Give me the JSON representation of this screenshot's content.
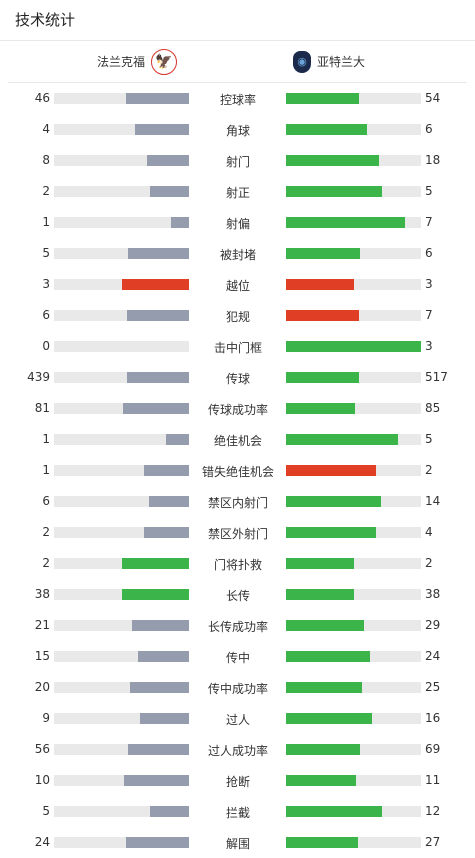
{
  "header": {
    "title": "技术统计"
  },
  "teams": {
    "home": {
      "name": "法兰克福",
      "logo_icon": "eintracht-frankfurt-logo-icon"
    },
    "away": {
      "name": "亚特兰大",
      "logo_icon": "atalanta-logo-icon"
    }
  },
  "colors": {
    "gray": "#949cae",
    "green": "#3bb54a",
    "red": "#e03e25",
    "track": "#e9e9e9"
  },
  "stats": [
    {
      "label": "控球率",
      "home": "46",
      "away": "54",
      "home_level": 0.47,
      "away_level": 0.54,
      "home_color": "gray",
      "away_color": "green"
    },
    {
      "label": "角球",
      "home": "4",
      "away": "6",
      "home_level": 0.4,
      "away_level": 0.6,
      "home_color": "gray",
      "away_color": "green"
    },
    {
      "label": "射门",
      "home": "8",
      "away": "18",
      "home_level": 0.31,
      "away_level": 0.69,
      "home_color": "gray",
      "away_color": "green"
    },
    {
      "label": "射正",
      "home": "2",
      "away": "5",
      "home_level": 0.29,
      "away_level": 0.71,
      "home_color": "gray",
      "away_color": "green"
    },
    {
      "label": "射偏",
      "home": "1",
      "away": "7",
      "home_level": 0.13,
      "away_level": 0.88,
      "home_color": "gray",
      "away_color": "green"
    },
    {
      "label": "被封堵",
      "home": "5",
      "away": "6",
      "home_level": 0.45,
      "away_level": 0.55,
      "home_color": "gray",
      "away_color": "green"
    },
    {
      "label": "越位",
      "home": "3",
      "away": "3",
      "home_level": 0.5,
      "away_level": 0.5,
      "home_color": "red",
      "away_color": "red"
    },
    {
      "label": "犯规",
      "home": "6",
      "away": "7",
      "home_level": 0.46,
      "away_level": 0.54,
      "home_color": "gray",
      "away_color": "red"
    },
    {
      "label": "击中门框",
      "home": "0",
      "away": "3",
      "home_level": 0.0,
      "away_level": 1.0,
      "home_color": "gray",
      "away_color": "green"
    },
    {
      "label": "传球",
      "home": "439",
      "away": "517",
      "home_level": 0.46,
      "away_level": 0.54,
      "home_color": "gray",
      "away_color": "green"
    },
    {
      "label": "传球成功率",
      "home": "81",
      "away": "85",
      "home_level": 0.49,
      "away_level": 0.51,
      "home_color": "gray",
      "away_color": "green"
    },
    {
      "label": "绝佳机会",
      "home": "1",
      "away": "5",
      "home_level": 0.17,
      "away_level": 0.83,
      "home_color": "gray",
      "away_color": "green"
    },
    {
      "label": "错失绝佳机会",
      "home": "1",
      "away": "2",
      "home_level": 0.33,
      "away_level": 0.67,
      "home_color": "gray",
      "away_color": "red"
    },
    {
      "label": "禁区内射门",
      "home": "6",
      "away": "14",
      "home_level": 0.3,
      "away_level": 0.7,
      "home_color": "gray",
      "away_color": "green"
    },
    {
      "label": "禁区外射门",
      "home": "2",
      "away": "4",
      "home_level": 0.33,
      "away_level": 0.67,
      "home_color": "gray",
      "away_color": "green"
    },
    {
      "label": "门将扑救",
      "home": "2",
      "away": "2",
      "home_level": 0.5,
      "away_level": 0.5,
      "home_color": "green",
      "away_color": "green"
    },
    {
      "label": "长传",
      "home": "38",
      "away": "38",
      "home_level": 0.5,
      "away_level": 0.5,
      "home_color": "green",
      "away_color": "green"
    },
    {
      "label": "长传成功率",
      "home": "21",
      "away": "29",
      "home_level": 0.42,
      "away_level": 0.58,
      "home_color": "gray",
      "away_color": "green"
    },
    {
      "label": "传中",
      "home": "15",
      "away": "24",
      "home_level": 0.38,
      "away_level": 0.62,
      "home_color": "gray",
      "away_color": "green"
    },
    {
      "label": "传中成功率",
      "home": "20",
      "away": "25",
      "home_level": 0.44,
      "away_level": 0.56,
      "home_color": "gray",
      "away_color": "green"
    },
    {
      "label": "过人",
      "home": "9",
      "away": "16",
      "home_level": 0.36,
      "away_level": 0.64,
      "home_color": "gray",
      "away_color": "green"
    },
    {
      "label": "过人成功率",
      "home": "56",
      "away": "69",
      "home_level": 0.45,
      "away_level": 0.55,
      "home_color": "gray",
      "away_color": "green"
    },
    {
      "label": "抢断",
      "home": "10",
      "away": "11",
      "home_level": 0.48,
      "away_level": 0.52,
      "home_color": "gray",
      "away_color": "green"
    },
    {
      "label": "拦截",
      "home": "5",
      "away": "12",
      "home_level": 0.29,
      "away_level": 0.71,
      "home_color": "gray",
      "away_color": "green"
    },
    {
      "label": "解围",
      "home": "24",
      "away": "27",
      "home_level": 0.47,
      "away_level": 0.53,
      "home_color": "gray",
      "away_color": "green"
    }
  ]
}
